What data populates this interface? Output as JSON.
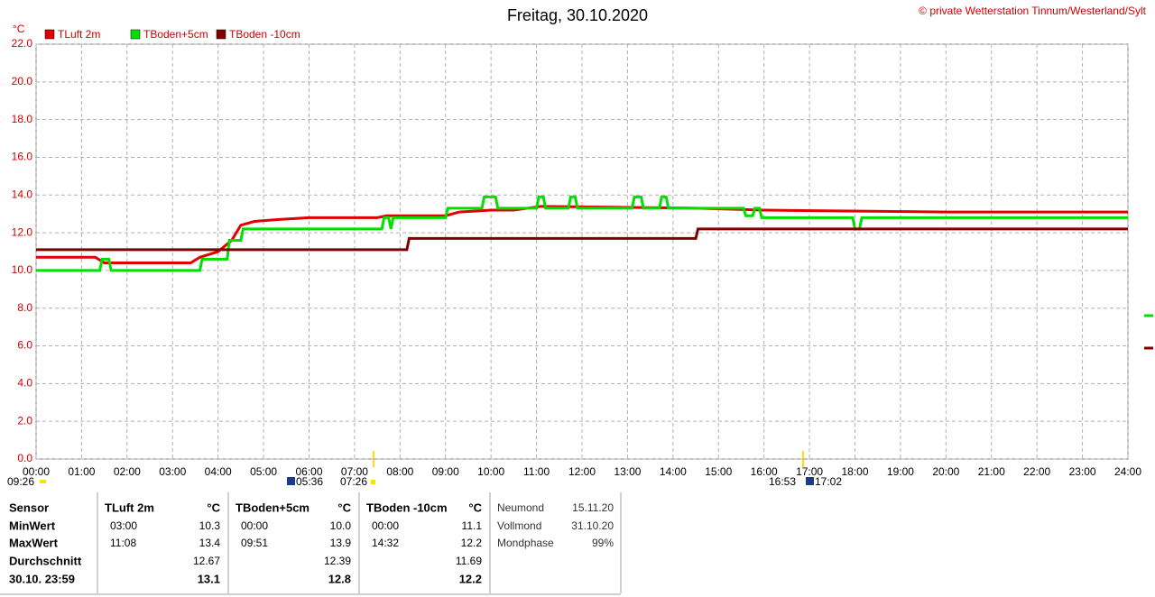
{
  "chart_data": {
    "type": "line",
    "title": "Freitag, 30.10.2020",
    "credit": "© private Wetterstation Tinnum/Westerland/Sylt",
    "y_unit": "°C",
    "xlim": [
      0,
      24
    ],
    "xticks": [
      {
        "value": 0,
        "label": "00:00"
      },
      {
        "value": 1,
        "label": "01:00"
      },
      {
        "value": 2,
        "label": "02:00"
      },
      {
        "value": 3,
        "label": "03:00"
      },
      {
        "value": 4,
        "label": "04:00"
      },
      {
        "value": 5,
        "label": "05:00"
      },
      {
        "value": 6,
        "label": "06:00"
      },
      {
        "value": 7,
        "label": "07:00"
      },
      {
        "value": 8,
        "label": "08:00"
      },
      {
        "value": 9,
        "label": "09:00"
      },
      {
        "value": 10,
        "label": "10:00"
      },
      {
        "value": 11,
        "label": "11:00"
      },
      {
        "value": 12,
        "label": "12:00"
      },
      {
        "value": 13,
        "label": "13:00"
      },
      {
        "value": 14,
        "label": "14:00"
      },
      {
        "value": 15,
        "label": "15:00"
      },
      {
        "value": 16,
        "label": "16:00"
      },
      {
        "value": 17,
        "label": "17:00"
      },
      {
        "value": 18,
        "label": "18:00"
      },
      {
        "value": 19,
        "label": "19:00"
      },
      {
        "value": 20,
        "label": "20:00"
      },
      {
        "value": 21,
        "label": "21:00"
      },
      {
        "value": 22,
        "label": "22:00"
      },
      {
        "value": 23,
        "label": "23:00"
      },
      {
        "value": 24,
        "label": "24:00"
      }
    ],
    "ylim": [
      0,
      22
    ],
    "yticks": [
      {
        "value": 0,
        "label": "0.0"
      },
      {
        "value": 2,
        "label": "2.0"
      },
      {
        "value": 4,
        "label": "4.0"
      },
      {
        "value": 6,
        "label": "6.0"
      },
      {
        "value": 8,
        "label": "8.0"
      },
      {
        "value": 10,
        "label": "10.0"
      },
      {
        "value": 12,
        "label": "12.0"
      },
      {
        "value": 14,
        "label": "14.0"
      },
      {
        "value": 16,
        "label": "16.0"
      },
      {
        "value": 18,
        "label": "18.0"
      },
      {
        "value": 20,
        "label": "20.0"
      },
      {
        "value": 22,
        "label": "22.0"
      }
    ],
    "grid": true,
    "annotations": [
      "09:26",
      "05:36",
      "07:26",
      "16:53",
      "17:02"
    ],
    "series": [
      {
        "name": "TLuft 2m",
        "color": "#e00000",
        "x": [
          0,
          1.3,
          1.5,
          3.4,
          3.6,
          4.0,
          4.3,
          4.5,
          4.8,
          5.3,
          6.0,
          7.5,
          7.7,
          9.0,
          9.3,
          10.0,
          10.5,
          11.1,
          14.5,
          16.0,
          20.0,
          24.0
        ],
        "values": [
          10.7,
          10.7,
          10.4,
          10.4,
          10.7,
          11.0,
          11.6,
          12.4,
          12.6,
          12.7,
          12.8,
          12.8,
          12.9,
          12.9,
          13.1,
          13.2,
          13.2,
          13.4,
          13.3,
          13.2,
          13.1,
          13.1
        ]
      },
      {
        "name": "TBoden+5cm",
        "color": "#00e000",
        "x": [
          0,
          1.4,
          1.45,
          1.6,
          1.65,
          3.6,
          3.65,
          4.2,
          4.25,
          4.5,
          4.55,
          7.6,
          7.65,
          7.75,
          7.8,
          7.85,
          9.0,
          9.05,
          9.8,
          9.85,
          10.1,
          10.15,
          11.0,
          11.05,
          11.15,
          11.2,
          11.7,
          11.75,
          11.85,
          11.9,
          13.1,
          13.15,
          13.3,
          13.35,
          13.7,
          13.75,
          13.85,
          13.9,
          15.55,
          15.6,
          15.75,
          15.8,
          15.9,
          15.95,
          17.95,
          18.0,
          18.1,
          18.15,
          24
        ],
        "values": [
          10.0,
          10.0,
          10.6,
          10.6,
          10.0,
          10.0,
          10.6,
          10.6,
          11.6,
          11.6,
          12.2,
          12.2,
          12.8,
          12.8,
          12.2,
          12.8,
          12.8,
          13.3,
          13.3,
          13.9,
          13.9,
          13.3,
          13.3,
          13.9,
          13.9,
          13.3,
          13.3,
          13.9,
          13.9,
          13.3,
          13.3,
          13.9,
          13.9,
          13.3,
          13.3,
          13.9,
          13.9,
          13.3,
          13.3,
          12.9,
          12.9,
          13.3,
          13.3,
          12.8,
          12.8,
          12.2,
          12.2,
          12.8,
          12.8
        ]
      },
      {
        "name": "TBoden -10cm",
        "color": "#800000",
        "x": [
          0,
          8.15,
          8.2,
          14.5,
          14.55,
          24
        ],
        "values": [
          11.1,
          11.1,
          11.7,
          11.7,
          12.2,
          12.2
        ]
      }
    ]
  },
  "stats": {
    "label_header": "Sensor",
    "row_labels": [
      "MinWert",
      "MaxWert",
      "Durchschnitt",
      "30.10. 23:59"
    ],
    "sensors": [
      {
        "name": "TLuft 2m",
        "unit": "°C",
        "min_time": "03:00",
        "min": "10.3",
        "max_time": "11:08",
        "max": "13.4",
        "avg": "12.67",
        "last": "13.1"
      },
      {
        "name": "TBoden+5cm",
        "unit": "°C",
        "min_time": "00:00",
        "min": "10.0",
        "max_time": "09:51",
        "max": "13.9",
        "avg": "12.39",
        "last": "12.8"
      },
      {
        "name": "TBoden -10cm",
        "unit": "°C",
        "min_time": "00:00",
        "min": "11.1",
        "max_time": "14:32",
        "max": "12.2",
        "avg": "11.69",
        "last": "12.2"
      }
    ],
    "moon": [
      {
        "label": "Neumond",
        "value": "15.11.20"
      },
      {
        "label": "Vollmond",
        "value": "31.10.20"
      },
      {
        "label": "Mondphase",
        "value": "99%"
      }
    ]
  }
}
